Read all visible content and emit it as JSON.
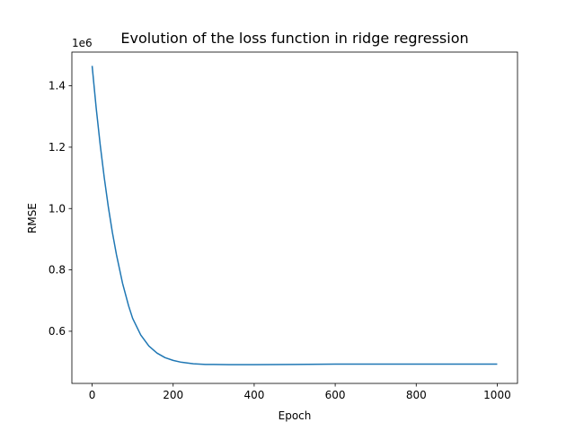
{
  "chart_data": {
    "type": "line",
    "title": "Evolution of the loss function in ridge regression",
    "xlabel": "Epoch",
    "ylabel": "RMSE",
    "y_multiplier_label": "1e6",
    "xlim": [
      -50,
      1050
    ],
    "ylim": [
      0.43,
      1.51
    ],
    "x_ticks": [
      0,
      200,
      400,
      600,
      800,
      1000
    ],
    "x_tick_labels": [
      "0",
      "200",
      "400",
      "600",
      "800",
      "1000"
    ],
    "y_ticks": [
      0.6,
      0.8,
      1.0,
      1.2,
      1.4
    ],
    "y_tick_labels": [
      "0.6",
      "0.8",
      "1.0",
      "1.2",
      "1.4"
    ],
    "grid": false,
    "series": [
      {
        "color": "#1f77b4",
        "x": [
          0,
          10,
          20,
          30,
          40,
          50,
          60,
          75,
          90,
          100,
          120,
          140,
          160,
          180,
          200,
          220,
          250,
          280,
          300,
          350,
          400,
          500,
          600,
          700,
          800,
          900,
          1000
        ],
        "y": [
          1.465,
          1.328,
          1.207,
          1.1,
          1.005,
          0.922,
          0.85,
          0.757,
          0.683,
          0.642,
          0.588,
          0.552,
          0.529,
          0.514,
          0.505,
          0.499,
          0.494,
          0.492,
          0.492,
          0.491,
          0.491,
          0.492,
          0.493,
          0.493,
          0.493,
          0.493,
          0.493
        ]
      }
    ]
  }
}
